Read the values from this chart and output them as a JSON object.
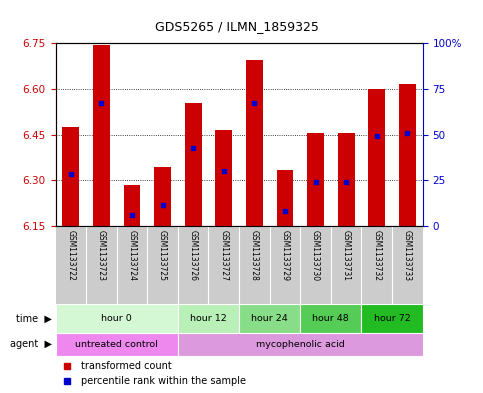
{
  "title": "GDS5265 / ILMN_1859325",
  "samples": [
    "GSM1133722",
    "GSM1133723",
    "GSM1133724",
    "GSM1133725",
    "GSM1133726",
    "GSM1133727",
    "GSM1133728",
    "GSM1133729",
    "GSM1133730",
    "GSM1133731",
    "GSM1133732",
    "GSM1133733"
  ],
  "bar_tops": [
    6.475,
    6.745,
    6.285,
    6.345,
    6.555,
    6.465,
    6.695,
    6.335,
    6.455,
    6.455,
    6.6,
    6.615
  ],
  "bar_bottom": 6.15,
  "blue_positions": [
    6.32,
    6.555,
    6.185,
    6.22,
    6.405,
    6.33,
    6.555,
    6.2,
    6.295,
    6.295,
    6.445,
    6.455
  ],
  "ylim_left": [
    6.15,
    6.75
  ],
  "yticks_left": [
    6.15,
    6.3,
    6.45,
    6.6,
    6.75
  ],
  "ylim_right": [
    0,
    100
  ],
  "yticks_right": [
    0,
    25,
    50,
    75,
    100
  ],
  "ytick_labels_right": [
    "0",
    "25",
    "50",
    "75",
    "100%"
  ],
  "bar_color": "#cc0000",
  "blue_color": "#0000cc",
  "grid_color": "black",
  "time_groups": [
    {
      "label": "hour 0",
      "start": 0,
      "end": 4,
      "color": "#d4f7d4"
    },
    {
      "label": "hour 12",
      "start": 4,
      "end": 6,
      "color": "#b8f0b8"
    },
    {
      "label": "hour 24",
      "start": 6,
      "end": 8,
      "color": "#88dd88"
    },
    {
      "label": "hour 48",
      "start": 8,
      "end": 10,
      "color": "#55cc55"
    },
    {
      "label": "hour 72",
      "start": 10,
      "end": 12,
      "color": "#22bb22"
    }
  ],
  "agent_groups": [
    {
      "label": "untreated control",
      "start": 0,
      "end": 4,
      "color": "#ee88ee"
    },
    {
      "label": "mycophenolic acid",
      "start": 4,
      "end": 12,
      "color": "#dd99dd"
    }
  ],
  "sample_bg_color": "#cccccc",
  "legend_red_label": "transformed count",
  "legend_blue_label": "percentile rank within the sample",
  "background_color": "#ffffff",
  "plot_bg_color": "#ffffff",
  "tick_color_left": "#cc0000",
  "tick_color_right": "#0000cc"
}
